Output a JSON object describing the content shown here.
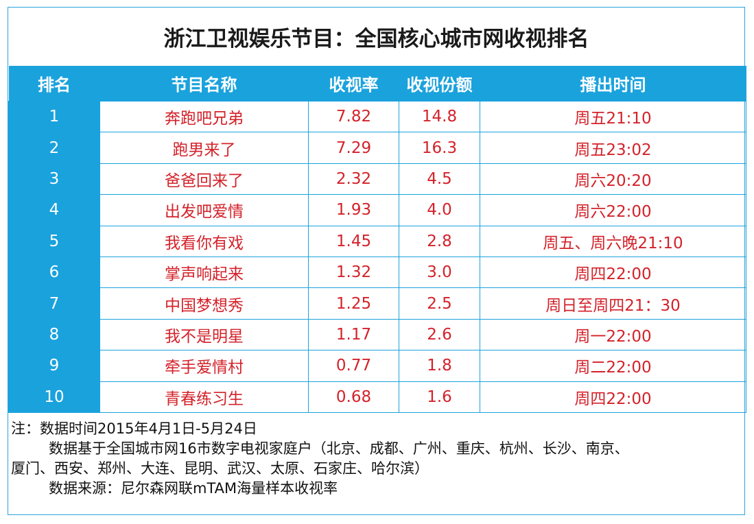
{
  "title": "浙江卫视娱乐节目：全国核心城市网收视排名",
  "headers": [
    "排名",
    "节目名称",
    "收视率",
    "收视份额",
    "播出时间"
  ],
  "chart_data": {
    "type": "table",
    "title": "浙江卫视娱乐节目：全国核心城市网收视排名",
    "columns": [
      "排名",
      "节目名称",
      "收视率",
      "收视份额",
      "播出时间"
    ],
    "rows": [
      [
        "1",
        "奔跑吧兄弟",
        "7.82",
        "14.8",
        "周五21:10"
      ],
      [
        "2",
        "跑男来了",
        "7.29",
        "16.3",
        "周五23:02"
      ],
      [
        "3",
        "爸爸回来了",
        "2.32",
        "4.5",
        "周六20:20"
      ],
      [
        "4",
        "出发吧爱情",
        "1.93",
        "4.0",
        "周六22:00"
      ],
      [
        "5",
        "我看你有戏",
        "1.45",
        "2.8",
        "周五、周六晚21:10"
      ],
      [
        "6",
        "掌声响起来",
        "1.32",
        "3.0",
        "周四22:00"
      ],
      [
        "7",
        "中国梦想秀",
        "1.25",
        "2.5",
        "周日至周四21：30"
      ],
      [
        "8",
        "我不是明星",
        "1.17",
        "2.6",
        "周一22:00"
      ],
      [
        "9",
        "牵手爱情村",
        "0.77",
        "1.8",
        "周二22:00"
      ],
      [
        "10",
        "青春练习生",
        "0.68",
        "1.6",
        "周四22:00"
      ]
    ]
  },
  "notes": [
    "注：数据时间2015年4月1日-5月24日",
    "数据基于全国城市网16市数字电视家庭户（北京、成都、广州、重庆、杭州、长沙、南京、",
    "厦门、西安、郑州、大连、昆明、武汉、太原、石家庄、哈尔滨）",
    "数据来源：尼尔森网联mTAM海量样本收视率"
  ],
  "colors": {
    "header_bg": "#1aa2dd",
    "value_text": "#d3222a",
    "border": "#1aa2dd"
  }
}
